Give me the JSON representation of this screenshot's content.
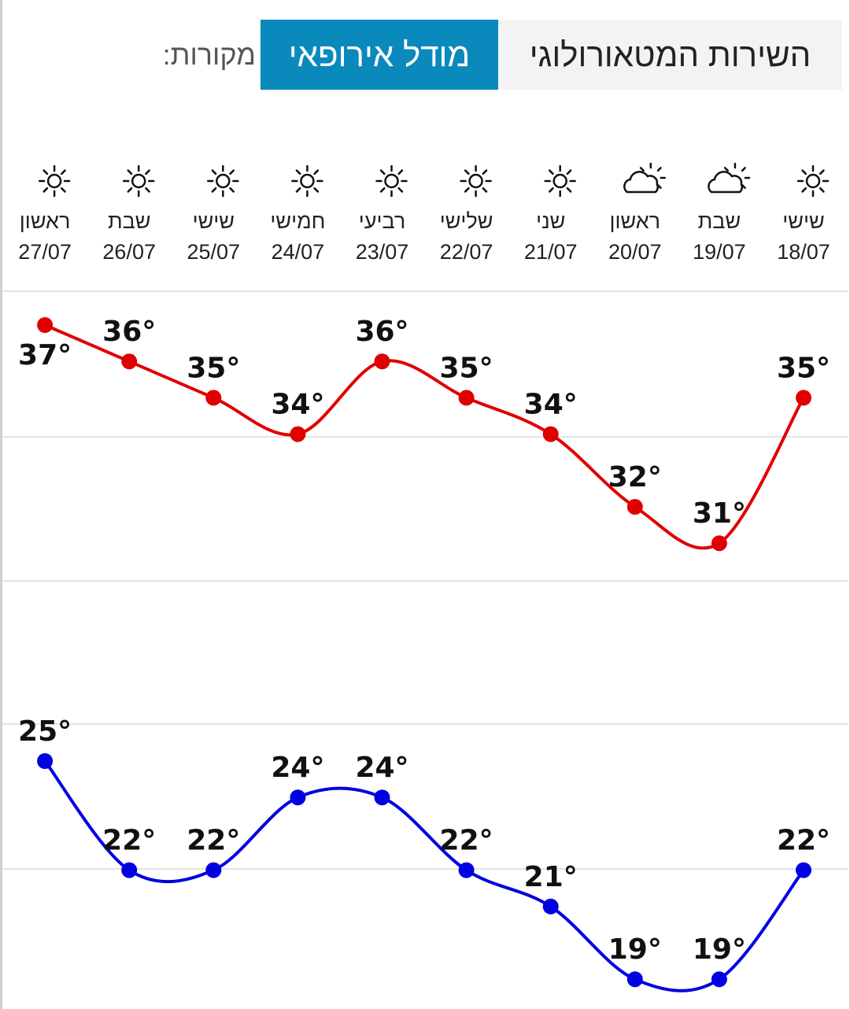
{
  "sources": {
    "label": "מקורות:",
    "options": [
      {
        "label": "מודל אירופאי",
        "active": true
      },
      {
        "label": "השירות המטאורולוגי",
        "active": false
      }
    ]
  },
  "chart_data": {
    "type": "line",
    "x": [
      {
        "day": "שישי",
        "date": "18/07",
        "icon": "sun-icon"
      },
      {
        "day": "שבת",
        "date": "19/07",
        "icon": "partly-cloudy-icon"
      },
      {
        "day": "ראשון",
        "date": "20/07",
        "icon": "partly-cloudy-icon"
      },
      {
        "day": "שני",
        "date": "21/07",
        "icon": "sun-icon"
      },
      {
        "day": "שלישי",
        "date": "22/07",
        "icon": "sun-icon"
      },
      {
        "day": "רביעי",
        "date": "23/07",
        "icon": "sun-icon"
      },
      {
        "day": "חמישי",
        "date": "24/07",
        "icon": "sun-icon"
      },
      {
        "day": "שישי",
        "date": "25/07",
        "icon": "sun-icon"
      },
      {
        "day": "שבת",
        "date": "26/07",
        "icon": "sun-icon"
      },
      {
        "day": "ראשון",
        "date": "27/07",
        "icon": "sun-icon"
      }
    ],
    "x_direction": "right-to-left",
    "unit": "°",
    "series": [
      {
        "values": [
          35,
          31,
          32,
          34,
          35,
          36,
          34,
          35,
          36,
          37
        ],
        "color": "#e00000"
      },
      {
        "values": [
          22,
          19,
          19,
          21,
          22,
          24,
          24,
          22,
          22,
          25
        ],
        "color": "#0000e0"
      }
    ],
    "grid": true,
    "colors": {
      "active_source": "#0a89bc",
      "grid": "#e4e4e4"
    }
  }
}
